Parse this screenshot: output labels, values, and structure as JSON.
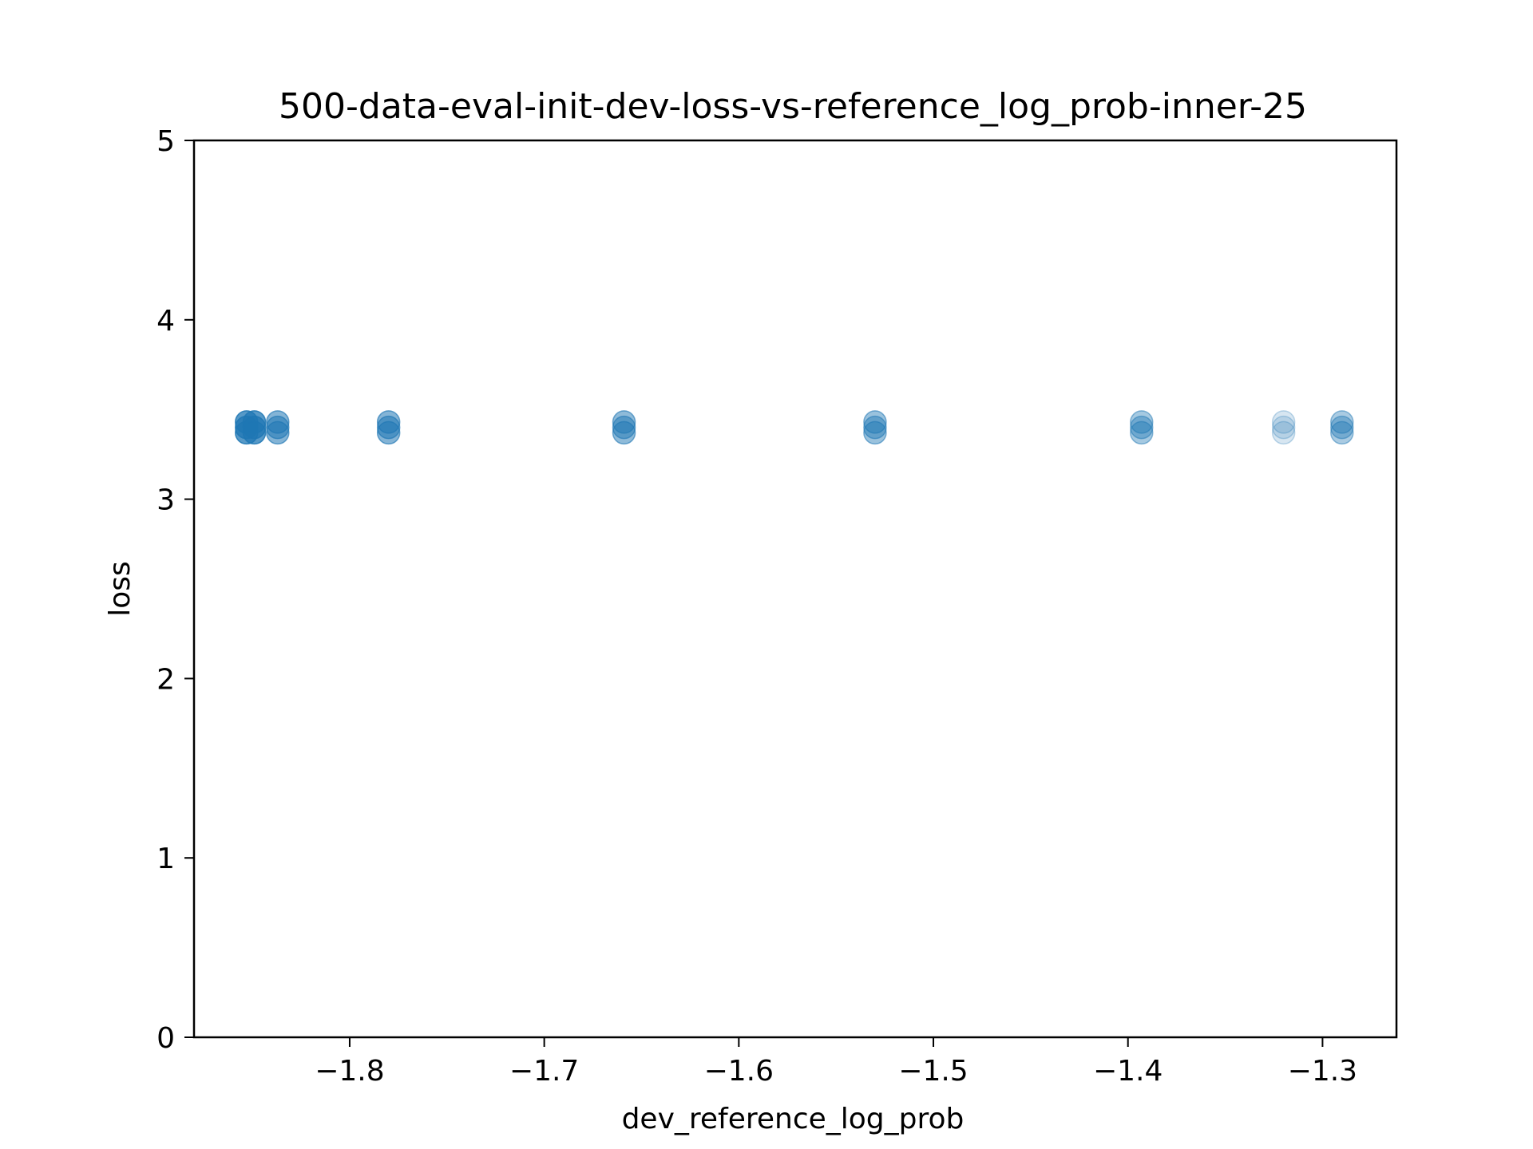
{
  "chart_data": {
    "type": "scatter",
    "title": "500-data-eval-init-dev-loss-vs-reference_log_prob-inner-25",
    "xlabel": "dev_reference_log_prob",
    "ylabel": "loss",
    "xlim": [
      -1.88,
      -1.262
    ],
    "ylim": [
      0,
      5
    ],
    "xticks": [
      -1.8,
      -1.7,
      -1.6,
      -1.5,
      -1.4,
      -1.3
    ],
    "xtick_labels": [
      "−1.8",
      "−1.7",
      "−1.6",
      "−1.5",
      "−1.4",
      "−1.3"
    ],
    "yticks": [
      0,
      1,
      2,
      3,
      4,
      5
    ],
    "ytick_labels": [
      "0",
      "1",
      "2",
      "3",
      "4",
      "5"
    ],
    "grid": false,
    "marker_color": "#1f77b4",
    "points": [
      {
        "x": -1.853,
        "y": 3.43,
        "alpha": 0.75
      },
      {
        "x": -1.853,
        "y": 3.4,
        "alpha": 0.75
      },
      {
        "x": -1.853,
        "y": 3.37,
        "alpha": 0.75
      },
      {
        "x": -1.849,
        "y": 3.43,
        "alpha": 0.75
      },
      {
        "x": -1.849,
        "y": 3.4,
        "alpha": 0.75
      },
      {
        "x": -1.849,
        "y": 3.37,
        "alpha": 0.75
      },
      {
        "x": -1.837,
        "y": 3.43,
        "alpha": 0.55
      },
      {
        "x": -1.837,
        "y": 3.4,
        "alpha": 0.55
      },
      {
        "x": -1.837,
        "y": 3.37,
        "alpha": 0.55
      },
      {
        "x": -1.78,
        "y": 3.43,
        "alpha": 0.55
      },
      {
        "x": -1.78,
        "y": 3.4,
        "alpha": 0.55
      },
      {
        "x": -1.78,
        "y": 3.37,
        "alpha": 0.55
      },
      {
        "x": -1.659,
        "y": 3.43,
        "alpha": 0.5
      },
      {
        "x": -1.659,
        "y": 3.4,
        "alpha": 0.5
      },
      {
        "x": -1.659,
        "y": 3.37,
        "alpha": 0.5
      },
      {
        "x": -1.53,
        "y": 3.43,
        "alpha": 0.45
      },
      {
        "x": -1.53,
        "y": 3.4,
        "alpha": 0.45
      },
      {
        "x": -1.53,
        "y": 3.37,
        "alpha": 0.45
      },
      {
        "x": -1.393,
        "y": 3.43,
        "alpha": 0.4
      },
      {
        "x": -1.393,
        "y": 3.4,
        "alpha": 0.4
      },
      {
        "x": -1.393,
        "y": 3.37,
        "alpha": 0.4
      },
      {
        "x": -1.32,
        "y": 3.43,
        "alpha": 0.18
      },
      {
        "x": -1.32,
        "y": 3.4,
        "alpha": 0.18
      },
      {
        "x": -1.32,
        "y": 3.37,
        "alpha": 0.18
      },
      {
        "x": -1.29,
        "y": 3.43,
        "alpha": 0.38
      },
      {
        "x": -1.29,
        "y": 3.4,
        "alpha": 0.38
      },
      {
        "x": -1.29,
        "y": 3.37,
        "alpha": 0.38
      }
    ]
  }
}
